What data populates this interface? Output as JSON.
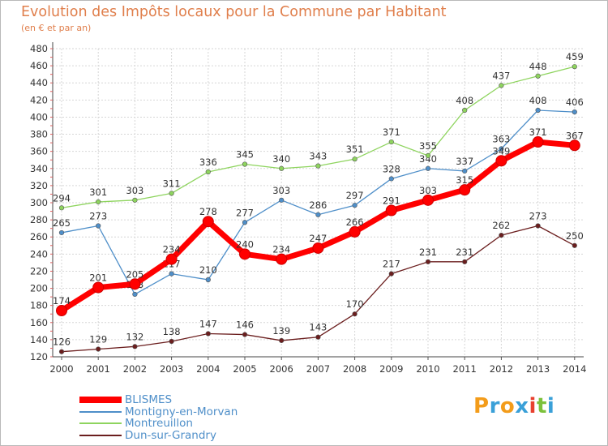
{
  "chart_data": {
    "type": "line",
    "title": "Evolution des Impôts locaux pour la Commune par Habitant",
    "subtitle": "(en € et par an)",
    "x": [
      "2000",
      "2001",
      "2002",
      "2003",
      "2004",
      "2005",
      "2006",
      "2007",
      "2008",
      "2009",
      "2010",
      "2011",
      "2012",
      "2013",
      "2014"
    ],
    "ylim": [
      120,
      480
    ],
    "yticks": [
      120,
      140,
      160,
      180,
      200,
      220,
      240,
      260,
      280,
      300,
      320,
      340,
      360,
      380,
      400,
      420,
      440,
      460,
      480
    ],
    "grid": true,
    "legend_position": "bottom-left",
    "series": [
      {
        "name": "BLISMES",
        "color": "#ff0000",
        "emphasis": true,
        "values": [
          174,
          201,
          205,
          234,
          278,
          240,
          234,
          247,
          266,
          291,
          303,
          315,
          349,
          371,
          367
        ]
      },
      {
        "name": "Montigny-en-Morvan",
        "color": "#4f8fc9",
        "values": [
          265,
          273,
          193,
          217,
          210,
          277,
          303,
          286,
          297,
          328,
          340,
          337,
          363,
          408,
          406
        ]
      },
      {
        "name": "Montreuillon",
        "color": "#8ed45e",
        "values": [
          294,
          301,
          303,
          311,
          336,
          345,
          340,
          343,
          351,
          371,
          355,
          408,
          437,
          448,
          459
        ]
      },
      {
        "name": "Dun-sur-Grandry",
        "color": "#6b1e1e",
        "values": [
          126,
          129,
          132,
          138,
          147,
          146,
          139,
          143,
          170,
          217,
          231,
          231,
          262,
          273,
          250
        ]
      }
    ]
  },
  "logo": {
    "letters": [
      "P",
      "r",
      "o",
      "x",
      "i",
      "t",
      "i"
    ],
    "colors": [
      "#f39c1a",
      "#3aa0d8",
      "#f39c1a",
      "#3aa0d8",
      "#e8402f",
      "#7cc13b",
      "#3aa0d8"
    ]
  }
}
